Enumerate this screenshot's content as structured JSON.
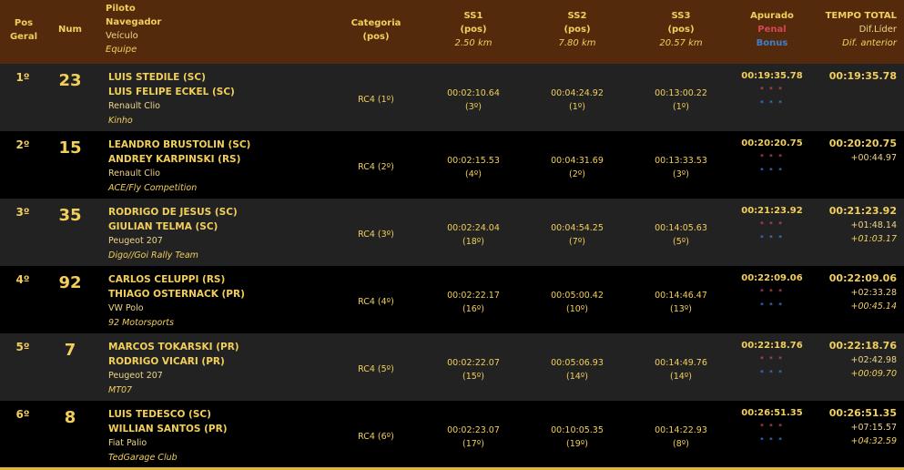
{
  "header": {
    "pos": [
      "Pos",
      "Geral"
    ],
    "num": "Num",
    "piloto": "Piloto",
    "navegador": "Navegador",
    "veiculo": "Veículo",
    "equipe": "Equipe",
    "categoria": [
      "Categoria",
      "(pos)"
    ],
    "ss": [
      {
        "name": "SS1",
        "pos": "(pos)",
        "dist": "2.50 km"
      },
      {
        "name": "SS2",
        "pos": "(pos)",
        "dist": "7.80 km"
      },
      {
        "name": "SS3",
        "pos": "(pos)",
        "dist": "20.57 km"
      }
    ],
    "apurado": "Apurado",
    "penal": "Penal",
    "bonus": "Bonus",
    "total": "TEMPO TOTAL",
    "dif_lider": "Dif.Líder",
    "dif_anterior": "Dif. anterior"
  },
  "colors": {
    "header_bg": "#532b0c",
    "text": "#f2cf5b",
    "penal": "#d9454f",
    "bonus": "#3f7fd0"
  },
  "rows": [
    {
      "pos": "1º",
      "num": "23",
      "piloto": "LUIS STEDILE (SC)",
      "navegador": "LUIS FELIPE ECKEL (SC)",
      "veiculo": "Renault Clio",
      "equipe": "Kinho",
      "categoria": "RC4 (1º)",
      "ss": [
        {
          "time": "00:02:10.64",
          "pos": "(3º)"
        },
        {
          "time": "00:04:24.92",
          "pos": "(1º)"
        },
        {
          "time": "00:13:00.22",
          "pos": "(1º)"
        }
      ],
      "apurado": "00:19:35.78",
      "penal": "* * *",
      "bonus": "* * *",
      "total": "00:19:35.78",
      "dif_lider": "",
      "dif_anterior": ""
    },
    {
      "pos": "2º",
      "num": "15",
      "piloto": "LEANDRO BRUSTOLIN (SC)",
      "navegador": "ANDREY KARPINSKI (RS)",
      "veiculo": "Renault Clio",
      "equipe": "ACE/Fly Competition",
      "categoria": "RC4 (2º)",
      "ss": [
        {
          "time": "00:02:15.53",
          "pos": "(4º)"
        },
        {
          "time": "00:04:31.69",
          "pos": "(2º)"
        },
        {
          "time": "00:13:33.53",
          "pos": "(3º)"
        }
      ],
      "apurado": "00:20:20.75",
      "penal": "* * *",
      "bonus": "* * *",
      "total": "00:20:20.75",
      "dif_lider": "+00:44.97",
      "dif_anterior": ""
    },
    {
      "pos": "3º",
      "num": "35",
      "piloto": "RODRIGO DE JESUS (SC)",
      "navegador": "GIULIAN TELMA (SC)",
      "veiculo": "Peugeot 207",
      "equipe": "Digo//Goi Rally Team",
      "categoria": "RC4 (3º)",
      "ss": [
        {
          "time": "00:02:24.04",
          "pos": "(18º)"
        },
        {
          "time": "00:04:54.25",
          "pos": "(7º)"
        },
        {
          "time": "00:14:05.63",
          "pos": "(5º)"
        }
      ],
      "apurado": "00:21:23.92",
      "penal": "* * *",
      "bonus": "* * *",
      "total": "00:21:23.92",
      "dif_lider": "+01:48.14",
      "dif_anterior": "+01:03.17"
    },
    {
      "pos": "4º",
      "num": "92",
      "piloto": "CARLOS CELUPPI (RS)",
      "navegador": "THIAGO OSTERNACK (PR)",
      "veiculo": "VW Polo",
      "equipe": "92 Motorsports",
      "categoria": "RC4 (4º)",
      "ss": [
        {
          "time": "00:02:22.17",
          "pos": "(16º)"
        },
        {
          "time": "00:05:00.42",
          "pos": "(10º)"
        },
        {
          "time": "00:14:46.47",
          "pos": "(13º)"
        }
      ],
      "apurado": "00:22:09.06",
      "penal": "* * *",
      "bonus": "* * *",
      "total": "00:22:09.06",
      "dif_lider": "+02:33.28",
      "dif_anterior": "+00:45.14"
    },
    {
      "pos": "5º",
      "num": "7",
      "piloto": "MARCOS TOKARSKI (PR)",
      "navegador": "RODRIGO VICARI (PR)",
      "veiculo": "Peugeot 207",
      "equipe": "MT07",
      "categoria": "RC4 (5º)",
      "ss": [
        {
          "time": "00:02:22.07",
          "pos": "(15º)"
        },
        {
          "time": "00:05:06.93",
          "pos": "(14º)"
        },
        {
          "time": "00:14:49.76",
          "pos": "(14º)"
        }
      ],
      "apurado": "00:22:18.76",
      "penal": "* * *",
      "bonus": "* * *",
      "total": "00:22:18.76",
      "dif_lider": "+02:42.98",
      "dif_anterior": "+00:09.70"
    },
    {
      "pos": "6º",
      "num": "8",
      "piloto": "LUIS TEDESCO (SC)",
      "navegador": "WILLIAN SANTOS (PR)",
      "veiculo": "Fiat Palio",
      "equipe": "TedGarage Club",
      "categoria": "RC4 (6º)",
      "ss": [
        {
          "time": "00:02:23.07",
          "pos": "(17º)"
        },
        {
          "time": "00:10:05.35",
          "pos": "(19º)"
        },
        {
          "time": "00:14:22.93",
          "pos": "(8º)"
        }
      ],
      "apurado": "00:26:51.35",
      "penal": "* * *",
      "bonus": "* * *",
      "total": "00:26:51.35",
      "dif_lider": "+07:15.57",
      "dif_anterior": "+04:32.59"
    }
  ]
}
